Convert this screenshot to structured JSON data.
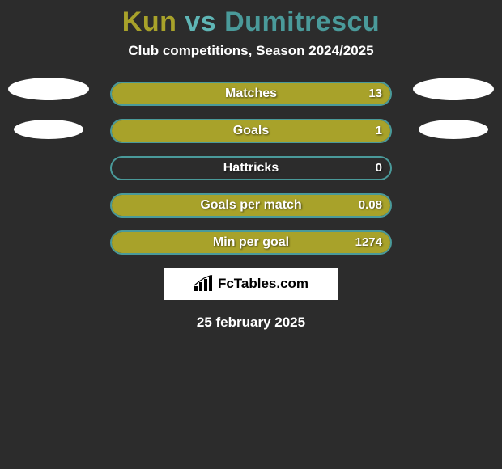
{
  "title": {
    "left_player": "Kun",
    "vs": "vs",
    "right_player": "Dumitrescu",
    "left_color": "#a8a22a",
    "right_color": "#4a9a9a"
  },
  "subtitle": "Club competitions, Season 2024/2025",
  "border_color": "#4a9a9a",
  "fill_color": "#a8a22a",
  "rows": [
    {
      "label": "Matches",
      "value": "13",
      "fill_side": "right",
      "fill_pct": 100,
      "value_side": "right"
    },
    {
      "label": "Goals",
      "value": "1",
      "fill_side": "right",
      "fill_pct": 100,
      "value_side": "right"
    },
    {
      "label": "Hattricks",
      "value": "0",
      "fill_side": "right",
      "fill_pct": 0,
      "value_side": "right"
    },
    {
      "label": "Goals per match",
      "value": "0.08",
      "fill_side": "right",
      "fill_pct": 100,
      "value_side": "right"
    },
    {
      "label": "Min per goal",
      "value": "1274",
      "fill_side": "right",
      "fill_pct": 100,
      "value_side": "right"
    }
  ],
  "left_ellipses": 2,
  "right_ellipses": 2,
  "logo_text": "FcTables.com",
  "date": "25 february 2025"
}
